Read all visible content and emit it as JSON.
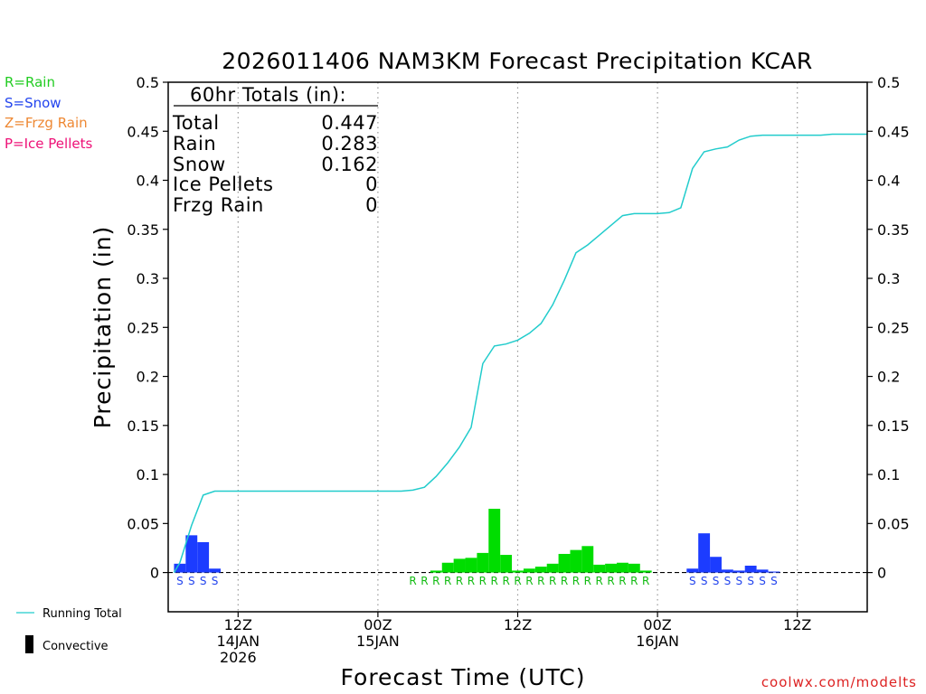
{
  "chart_data": {
    "type": "bar",
    "title": "2026011406 NAM3KM Forecast Precipitation KCAR",
    "ylabel": "Precipitation (in)",
    "xlabel": "Forecast Time (UTC)",
    "ylim": [
      -0.04,
      0.5
    ],
    "xlim_hours": [
      0,
      60
    ],
    "y_ticks": [
      0,
      0.05,
      0.1,
      0.15,
      0.2,
      0.25,
      0.3,
      0.35,
      0.4,
      0.45,
      0.5
    ],
    "y_tick_labels": [
      "0",
      "0.05",
      "0.1",
      "0.15",
      "0.2",
      "0.25",
      "0.3",
      "0.35",
      "0.4",
      "0.45",
      "0.5"
    ],
    "x_ticks": [
      {
        "hour": 6,
        "lines": [
          "12Z",
          "14JAN",
          "2026"
        ]
      },
      {
        "hour": 18,
        "lines": [
          "00Z",
          "15JAN"
        ]
      },
      {
        "hour": 30,
        "lines": [
          "12Z"
        ]
      },
      {
        "hour": 42,
        "lines": [
          "00Z",
          "16JAN"
        ]
      },
      {
        "hour": 54,
        "lines": [
          "12Z"
        ]
      }
    ],
    "bar_hours": [
      1,
      2,
      3,
      4,
      23,
      24,
      25,
      26,
      27,
      28,
      29,
      30,
      31,
      32,
      33,
      34,
      35,
      36,
      37,
      38,
      39,
      40,
      41,
      45,
      46,
      47,
      48,
      49,
      50,
      51,
      52
    ],
    "bar_values": [
      0.009,
      0.038,
      0.031,
      0.004,
      0.002,
      0.01,
      0.014,
      0.015,
      0.02,
      0.065,
      0.018,
      0.002,
      0.004,
      0.006,
      0.009,
      0.019,
      0.023,
      0.027,
      0.008,
      0.009,
      0.01,
      0.009,
      0.002,
      0.004,
      0.04,
      0.016,
      0.003,
      0.002,
      0.007,
      0.003,
      0.001
    ],
    "bar_types": [
      "S",
      "S",
      "S",
      "S",
      "R",
      "R",
      "R",
      "R",
      "R",
      "R",
      "R",
      "R",
      "R",
      "R",
      "R",
      "R",
      "R",
      "R",
      "R",
      "R",
      "R",
      "R",
      "R",
      "S",
      "S",
      "S",
      "S",
      "S",
      "S",
      "S",
      "S"
    ],
    "type_markers": {
      "S": {
        "hours": [
          1,
          2,
          3,
          4,
          45,
          46,
          47,
          48,
          49,
          50,
          51,
          52
        ],
        "label": "S"
      },
      "R": {
        "hours": [
          21,
          22,
          23,
          24,
          25,
          26,
          27,
          28,
          29,
          30,
          31,
          32,
          33,
          34,
          35,
          36,
          37,
          38,
          39,
          40,
          41
        ],
        "label": "R"
      }
    },
    "running_total": {
      "name": "Running Total",
      "x": [
        0.5,
        1,
        2,
        3,
        4,
        5,
        6,
        7,
        8,
        9,
        10,
        11,
        12,
        13,
        14,
        15,
        16,
        17,
        18,
        19,
        20,
        21,
        22,
        23,
        24,
        25,
        26,
        27,
        28,
        29,
        30,
        31,
        32,
        33,
        34,
        35,
        36,
        37,
        38,
        39,
        40,
        41,
        42,
        43,
        44,
        45,
        46,
        47,
        48,
        49,
        50,
        51,
        52,
        53,
        54,
        55,
        56,
        57,
        58,
        59,
        60
      ],
      "y": [
        0.0,
        0.01,
        0.048,
        0.079,
        0.083,
        0.083,
        0.083,
        0.083,
        0.083,
        0.083,
        0.083,
        0.083,
        0.083,
        0.083,
        0.083,
        0.083,
        0.083,
        0.083,
        0.083,
        0.083,
        0.083,
        0.084,
        0.087,
        0.098,
        0.112,
        0.128,
        0.148,
        0.213,
        0.231,
        0.233,
        0.237,
        0.244,
        0.254,
        0.273,
        0.298,
        0.326,
        0.334,
        0.344,
        0.354,
        0.364,
        0.366,
        0.366,
        0.366,
        0.367,
        0.372,
        0.412,
        0.429,
        0.432,
        0.434,
        0.441,
        0.445,
        0.446,
        0.446,
        0.446,
        0.446,
        0.446,
        0.446,
        0.447,
        0.447,
        0.447,
        0.447
      ]
    }
  },
  "totals_box": {
    "header": "60hr Totals (in):",
    "rows": [
      {
        "label": "Total",
        "value": "0.447"
      },
      {
        "label": "Rain",
        "value": "0.283"
      },
      {
        "label": "Snow",
        "value": "0.162"
      },
      {
        "label": "Ice Pellets",
        "value": "0"
      },
      {
        "label": "Frzg Rain",
        "value": "0"
      }
    ]
  },
  "type_legend": [
    {
      "text": "R=Rain",
      "color": "#22cc22"
    },
    {
      "text": "S=Snow",
      "color": "#2244ee"
    },
    {
      "text": "Z=Frzg Rain",
      "color": "#ee8833"
    },
    {
      "text": "P=Ice Pellets",
      "color": "#ee1177"
    }
  ],
  "line_legend": {
    "running_total": "Running Total",
    "convective": "Convective"
  },
  "colors": {
    "rain": "#00dd00",
    "snow": "#1c3cff",
    "line": "#22cccc",
    "rain_text": "#11bb11",
    "snow_text": "#2244ee",
    "credit": "#dd2222"
  },
  "credit": "coolwx.com/modelts"
}
